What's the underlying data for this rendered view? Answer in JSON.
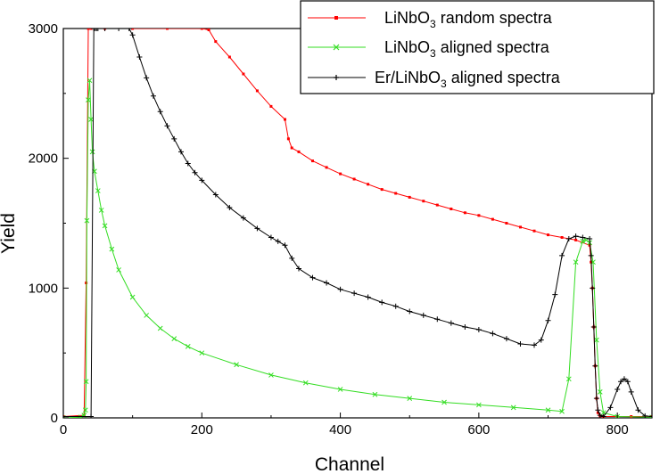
{
  "chart_data": {
    "type": "line",
    "xlabel": "Channel",
    "ylabel": "Yield",
    "xlim": [
      0,
      850
    ],
    "ylim": [
      0,
      3000
    ],
    "xticks": [
      0,
      200,
      400,
      600,
      800
    ],
    "yticks": [
      0,
      1000,
      2000,
      3000
    ],
    "grid": false,
    "legend_position": "top-right",
    "series": [
      {
        "name": "LiNbO3 random spectra",
        "legend_main": "LiNbO",
        "legend_sub": "3",
        "legend_rest": " random spectra",
        "color": "#ff0000",
        "marker": "square",
        "x": [
          0,
          30,
          33,
          36,
          40,
          60,
          100,
          150,
          200,
          210,
          220,
          240,
          260,
          280,
          300,
          320,
          325,
          330,
          340,
          360,
          380,
          400,
          420,
          440,
          460,
          480,
          500,
          520,
          540,
          560,
          580,
          600,
          620,
          640,
          660,
          680,
          700,
          720,
          740,
          760,
          762,
          764,
          766,
          768,
          770,
          772,
          775,
          780,
          800,
          820,
          850
        ],
        "y": [
          10,
          20,
          1040,
          3000,
          3000,
          3000,
          3000,
          3000,
          3000,
          2990,
          2900,
          2780,
          2650,
          2520,
          2400,
          2300,
          2150,
          2080,
          2050,
          1980,
          1930,
          1880,
          1840,
          1800,
          1760,
          1730,
          1700,
          1670,
          1640,
          1610,
          1580,
          1560,
          1530,
          1500,
          1470,
          1440,
          1410,
          1390,
          1370,
          1330,
          1200,
          1000,
          700,
          400,
          150,
          40,
          15,
          10,
          10,
          10,
          10
        ]
      },
      {
        "name": "LiNbO3 aligned spectra",
        "legend_main": "LiNbO",
        "legend_sub": "3",
        "legend_rest": " aligned spectra",
        "color": "#33dd22",
        "marker": "x",
        "x": [
          0,
          25,
          30,
          32,
          33,
          34,
          36,
          38,
          40,
          42,
          45,
          50,
          55,
          60,
          70,
          80,
          100,
          120,
          140,
          160,
          180,
          200,
          250,
          300,
          350,
          400,
          450,
          500,
          550,
          600,
          650,
          700,
          720,
          730,
          740,
          750,
          755,
          760,
          765,
          770,
          775,
          780,
          800,
          850
        ],
        "y": [
          0,
          5,
          20,
          60,
          280,
          1520,
          2450,
          2600,
          2300,
          2050,
          1900,
          1750,
          1600,
          1480,
          1300,
          1140,
          930,
          790,
          690,
          610,
          550,
          500,
          410,
          330,
          270,
          220,
          180,
          150,
          120,
          100,
          80,
          60,
          50,
          300,
          1200,
          1360,
          1370,
          1350,
          1200,
          600,
          200,
          40,
          10,
          5
        ]
      },
      {
        "name": "Er/LiNbO3 aligned spectra",
        "legend_main": "Er/LiNbO",
        "legend_sub": "3",
        "legend_rest": " aligned spectra",
        "color": "#000000",
        "marker": "plus",
        "x": [
          0,
          40,
          44,
          46,
          48,
          50,
          60,
          80,
          95,
          100,
          110,
          120,
          130,
          140,
          150,
          160,
          170,
          180,
          190,
          200,
          220,
          240,
          260,
          280,
          300,
          310,
          320,
          330,
          340,
          360,
          380,
          400,
          420,
          440,
          460,
          480,
          500,
          520,
          540,
          560,
          580,
          600,
          620,
          640,
          660,
          680,
          690,
          700,
          710,
          720,
          730,
          740,
          750,
          760,
          762,
          764,
          766,
          768,
          770,
          772,
          775,
          780,
          790,
          800,
          805,
          810,
          815,
          820,
          830,
          840,
          850
        ],
        "y": [
          10,
          10,
          3000,
          3000,
          3000,
          3000,
          3000,
          3000,
          3000,
          2950,
          2780,
          2620,
          2480,
          2360,
          2250,
          2150,
          2050,
          1960,
          1890,
          1830,
          1720,
          1620,
          1540,
          1460,
          1390,
          1360,
          1330,
          1230,
          1150,
          1080,
          1040,
          990,
          960,
          930,
          890,
          860,
          820,
          790,
          760,
          730,
          700,
          680,
          650,
          610,
          570,
          560,
          600,
          750,
          950,
          1250,
          1380,
          1400,
          1390,
          1380,
          1250,
          1000,
          700,
          400,
          150,
          60,
          20,
          10,
          80,
          220,
          280,
          300,
          280,
          200,
          60,
          15,
          10
        ]
      }
    ]
  }
}
